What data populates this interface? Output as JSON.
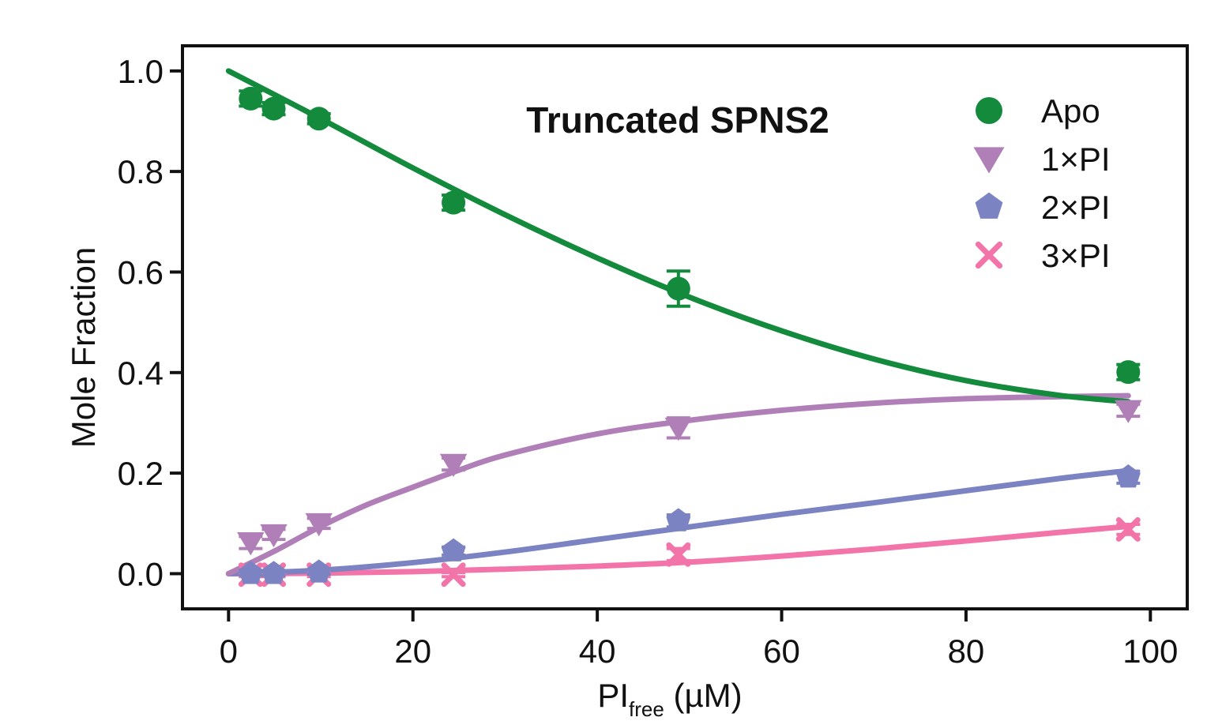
{
  "chart_data": {
    "type": "scatter",
    "title": "Truncated SPNS2",
    "xlabel": {
      "main": "PI",
      "sub": "free",
      "unit": " (µM)"
    },
    "ylabel": "Mole Fraction",
    "xlim": [
      -5,
      104
    ],
    "ylim": [
      -0.07,
      1.05
    ],
    "xticks": [
      0,
      20,
      40,
      60,
      80,
      100
    ],
    "yticks": [
      0.0,
      0.2,
      0.4,
      0.6,
      0.8,
      1.0
    ],
    "xtick_labels": [
      "0",
      "20",
      "40",
      "60",
      "80",
      "100"
    ],
    "ytick_labels": [
      "0.0",
      "0.2",
      "0.4",
      "0.6",
      "0.8",
      "1.0"
    ],
    "grid": false,
    "legend_position": "top-right",
    "series": [
      {
        "name": "Apo",
        "marker": "circle",
        "color": "#138a3c",
        "points": [
          {
            "x": 2.4,
            "y": 0.945,
            "err": 0.015
          },
          {
            "x": 4.9,
            "y": 0.925,
            "err": 0.012
          },
          {
            "x": 9.8,
            "y": 0.905,
            "err": 0.01
          },
          {
            "x": 24.4,
            "y": 0.738,
            "err": 0.015
          },
          {
            "x": 48.8,
            "y": 0.567,
            "err": 0.035
          },
          {
            "x": 97.6,
            "y": 0.401,
            "err": 0.015
          }
        ],
        "fit": [
          [
            0,
            1.0
          ],
          [
            10,
            0.905
          ],
          [
            20,
            0.807
          ],
          [
            30,
            0.714
          ],
          [
            40,
            0.628
          ],
          [
            50,
            0.55
          ],
          [
            60,
            0.483
          ],
          [
            70,
            0.427
          ],
          [
            80,
            0.384
          ],
          [
            90,
            0.355
          ],
          [
            97.6,
            0.342
          ]
        ]
      },
      {
        "name": "1×PI",
        "marker": "triangle-down",
        "color": "#b07fb8",
        "points": [
          {
            "x": 2.4,
            "y": 0.062,
            "err": 0.012
          },
          {
            "x": 4.9,
            "y": 0.078,
            "err": 0.01
          },
          {
            "x": 9.8,
            "y": 0.1,
            "err": 0.01
          },
          {
            "x": 24.4,
            "y": 0.218,
            "err": 0.012
          },
          {
            "x": 48.8,
            "y": 0.29,
            "err": 0.02
          },
          {
            "x": 97.6,
            "y": 0.325,
            "err": 0.012
          }
        ],
        "fit": [
          [
            0,
            0.0
          ],
          [
            5,
            0.045
          ],
          [
            10,
            0.094
          ],
          [
            15,
            0.137
          ],
          [
            20,
            0.172
          ],
          [
            25,
            0.206
          ],
          [
            30,
            0.236
          ],
          [
            40,
            0.278
          ],
          [
            50,
            0.305
          ],
          [
            60,
            0.325
          ],
          [
            70,
            0.339
          ],
          [
            80,
            0.348
          ],
          [
            90,
            0.352
          ],
          [
            97.6,
            0.354
          ]
        ]
      },
      {
        "name": "2×PI",
        "marker": "pentagon",
        "color": "#7b83c2",
        "points": [
          {
            "x": 2.4,
            "y": 0.0,
            "err": 0.004
          },
          {
            "x": 4.9,
            "y": 0.0,
            "err": 0.004
          },
          {
            "x": 9.8,
            "y": 0.003,
            "err": 0.004
          },
          {
            "x": 24.4,
            "y": 0.045,
            "err": 0.008
          },
          {
            "x": 48.8,
            "y": 0.105,
            "err": 0.012
          },
          {
            "x": 97.6,
            "y": 0.192,
            "err": 0.012
          }
        ],
        "fit": [
          [
            0,
            0.0
          ],
          [
            10,
            0.007
          ],
          [
            20,
            0.022
          ],
          [
            30,
            0.043
          ],
          [
            40,
            0.068
          ],
          [
            50,
            0.093
          ],
          [
            60,
            0.118
          ],
          [
            70,
            0.141
          ],
          [
            80,
            0.165
          ],
          [
            90,
            0.189
          ],
          [
            97.6,
            0.205
          ]
        ]
      },
      {
        "name": "3×PI",
        "marker": "cross",
        "color": "#f274a8",
        "points": [
          {
            "x": 2.4,
            "y": -0.002,
            "err": 0.004
          },
          {
            "x": 4.9,
            "y": -0.002,
            "err": 0.004
          },
          {
            "x": 9.8,
            "y": -0.002,
            "err": 0.004
          },
          {
            "x": 24.4,
            "y": -0.002,
            "err": 0.004
          },
          {
            "x": 48.8,
            "y": 0.038,
            "err": 0.012
          },
          {
            "x": 97.6,
            "y": 0.088,
            "err": 0.01
          }
        ],
        "fit": [
          [
            0,
            0.0
          ],
          [
            10,
            0.001
          ],
          [
            20,
            0.004
          ],
          [
            30,
            0.009
          ],
          [
            40,
            0.015
          ],
          [
            50,
            0.023
          ],
          [
            60,
            0.035
          ],
          [
            70,
            0.049
          ],
          [
            80,
            0.065
          ],
          [
            90,
            0.082
          ],
          [
            97.6,
            0.094
          ]
        ]
      }
    ]
  }
}
